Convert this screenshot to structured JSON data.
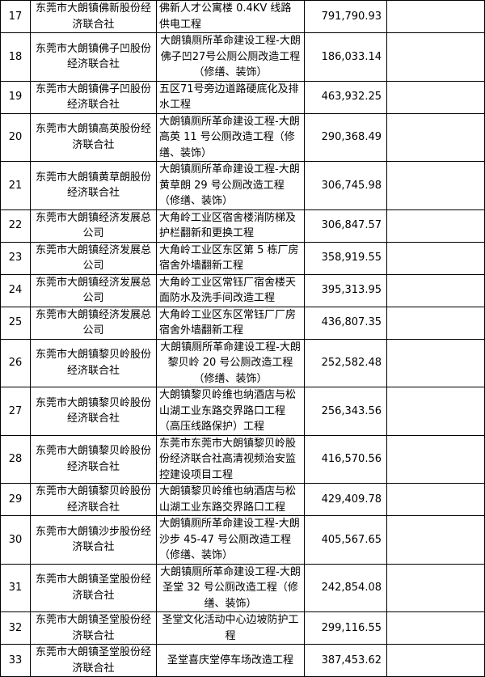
{
  "rows": [
    {
      "no": "17",
      "org": "东莞市大朗镇佛新股份经济联合社",
      "project": "佛新人才公寓楼 0.4KV 线路供电工程",
      "amount": "791,790.93"
    },
    {
      "no": "18",
      "org": "东莞市大朗镇佛子凹股份经济联合社",
      "project": "大朗镇厕所革命建设工程-大朗佛子凹27号公厕公厕改造工程（修缮、装饰）",
      "amount": "186,033.14"
    },
    {
      "no": "19",
      "org": "东莞市大朗镇佛子凹股份经济联合社",
      "project": "五区71号旁边道路硬底化及排水工程",
      "amount": "463,932.25"
    },
    {
      "no": "20",
      "org": "东莞市大朗镇高英股份经济联合社",
      "project": "大朗镇厕所革命建设工程-大朗高英 11 号公厕改造工程（修缮、装饰）",
      "amount": "290,368.49"
    },
    {
      "no": "21",
      "org": "东莞市大朗镇黄草朗股份经济联合社",
      "project": "大朗镇厕所革命建设工程-大朗黄草朗 29 号公厕改造工程（修缮、装饰）",
      "amount": "306,745.98"
    },
    {
      "no": "22",
      "org": "东莞市大朗镇经济发展总公司",
      "project": "大角岭工业区宿舍楼消防梯及护栏翻新和更换工程",
      "amount": "306,847.57"
    },
    {
      "no": "23",
      "org": "东莞市大朗镇经济发展总公司",
      "project": "大角岭工业区东区第 5 栋厂房宿舍外墙翻新工程",
      "amount": "358,919.55"
    },
    {
      "no": "24",
      "org": "东莞市大朗镇经济发展总公司",
      "project": "大角岭工业区常钰厂宿舍楼天面防水及洗手间改造工程",
      "amount": "395,313.95"
    },
    {
      "no": "25",
      "org": "东莞市大朗镇经济发展总公司",
      "project": "大角岭工业区东区常钰厂厂房宿舍外墙翻新工程",
      "amount": "436,807.35"
    },
    {
      "no": "26",
      "org": "东莞市大朗镇黎贝岭股份经济联合社",
      "project": "大朗镇厕所革命建设工程-大朗黎贝岭 20 号公厕改造工程（修缮、装饰）",
      "amount": "252,582.48"
    },
    {
      "no": "27",
      "org": "东莞市大朗镇黎贝岭股份经济联合社",
      "project": "大朗镇黎贝岭维也纳酒店与松山湖工业东路交界路口工程（高压线路保护）工程",
      "amount": "256,343.56"
    },
    {
      "no": "28",
      "org": "东莞市大朗镇黎贝岭股份经济联合社",
      "project": "东莞市东莞市大朗镇黎贝岭股份经济联合社高清视频治安监控建设项目工程",
      "amount": "416,570.56"
    },
    {
      "no": "29",
      "org": "东莞市大朗镇黎贝岭股份经济联合社",
      "project": "大朗镇黎贝岭维也纳酒店与松山湖工业东路交界路口工程",
      "amount": "429,409.78"
    },
    {
      "no": "30",
      "org": "东莞市大朗镇沙步股份经济联合社",
      "project": "大朗镇厕所革命建设工程-大朗沙步 45-47 号公厕改造工程（修缮、装饰）",
      "amount": "405,567.65"
    },
    {
      "no": "31",
      "org": "东莞市大朗镇圣堂股份经济联合社",
      "project": "大朗镇厕所革命建设工程-大朗圣堂 32 号公厕改造工程（修缮、装饰）",
      "amount": "242,854.08"
    },
    {
      "no": "32",
      "org": "东莞市大朗镇圣堂股份经济联合社",
      "project": "圣堂文化活动中心边坡防护工程",
      "amount": "299,116.55"
    },
    {
      "no": "33",
      "org": "东莞市大朗镇圣堂股份经济联合社",
      "project": "圣堂喜庆堂停车场改造工程",
      "amount": "387,453.62"
    }
  ]
}
